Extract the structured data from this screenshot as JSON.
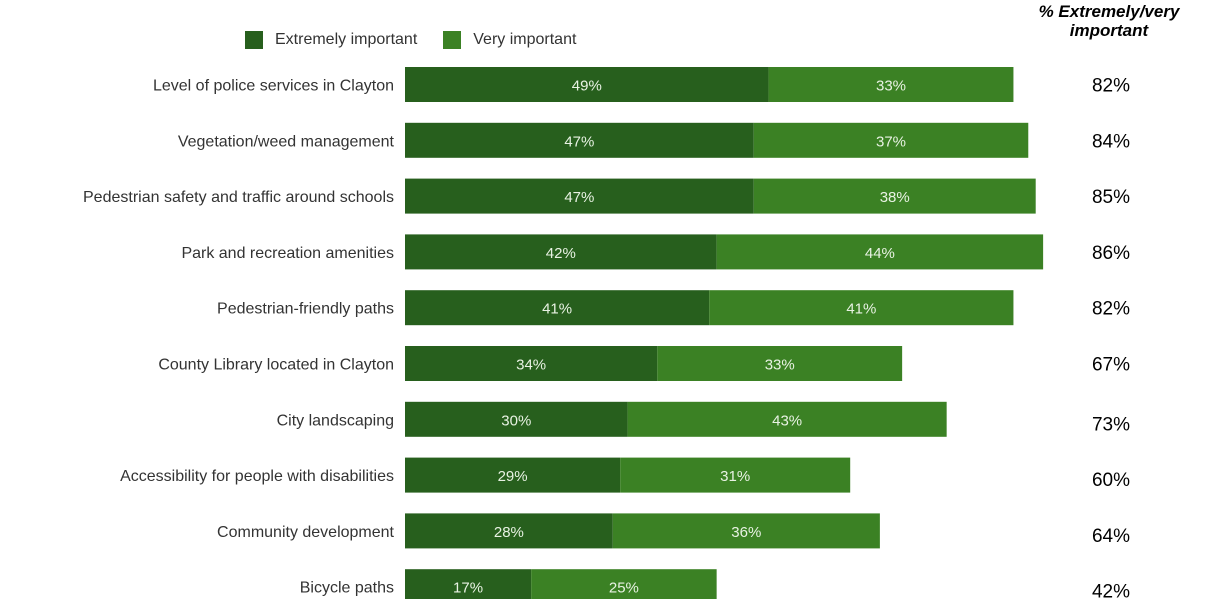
{
  "legend": {
    "extremely_label": "Extremely important",
    "very_label": "Very important"
  },
  "colors": {
    "extremely": "#275f1d",
    "very": "#3b8124"
  },
  "header": {
    "total_label_line1": "% Extremely/very",
    "total_label_line2": "important"
  },
  "chart_data": {
    "type": "bar",
    "orientation": "horizontal",
    "stacked": true,
    "categories": [
      "Level of police services in Clayton",
      "Vegetation/weed management",
      "Pedestrian safety and traffic around schools",
      "Park and recreation amenities",
      "Pedestrian-friendly paths",
      "County Library located in Clayton",
      "City landscaping",
      "Accessibility for people with disabilities",
      "Community development",
      "Bicycle paths"
    ],
    "series": [
      {
        "name": "Extremely important",
        "values": [
          49,
          47,
          47,
          42,
          41,
          34,
          30,
          29,
          28,
          17
        ],
        "labels": [
          "49%",
          "47%",
          "47%",
          "42%",
          "41%",
          "34%",
          "30%",
          "29%",
          "28%",
          "17%"
        ]
      },
      {
        "name": "Very important",
        "values": [
          33,
          37,
          38,
          44,
          41,
          33,
          43,
          31,
          36,
          25
        ],
        "labels": [
          "33%",
          "37%",
          "38%",
          "44%",
          "41%",
          "33%",
          "43%",
          "31%",
          "36%",
          "25%"
        ]
      }
    ],
    "totals": [
      "82%",
      "84%",
      "85%",
      "86%",
      "82%",
      "67%",
      "73%",
      "60%",
      "64%",
      "42%"
    ],
    "xlim": [
      0,
      86
    ],
    "grid": false,
    "legend_position": "top"
  }
}
